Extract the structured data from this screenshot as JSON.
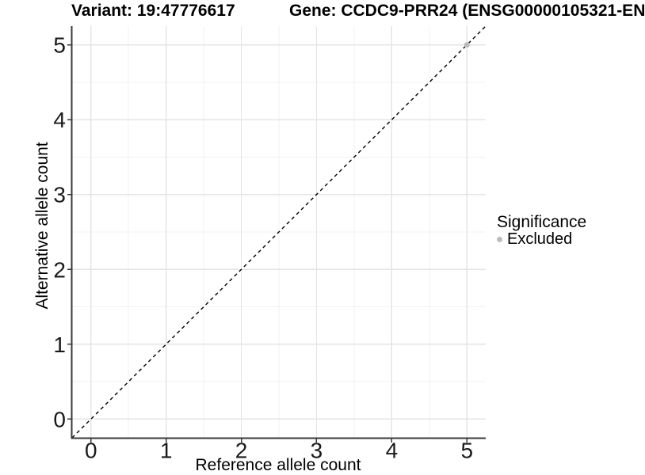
{
  "chart_data": {
    "type": "scatter",
    "title_variant": "Variant: 19:47776617",
    "title_gene": "Gene: CCDC9-PRR24 (ENSG00000105321-EN",
    "xlabel": "Reference allele count",
    "ylabel": "Alternative allele count",
    "xlim": [
      -0.25,
      5.25
    ],
    "ylim": [
      -0.25,
      5.25
    ],
    "x_ticks": [
      0,
      1,
      2,
      3,
      4,
      5
    ],
    "y_ticks": [
      0,
      1,
      2,
      3,
      4,
      5
    ],
    "x_minor_ticks": [
      0.5,
      1.5,
      2.5,
      3.5,
      4.5
    ],
    "y_minor_ticks": [
      0.5,
      1.5,
      2.5,
      3.5,
      4.5
    ],
    "grid": true,
    "legend_position": "right",
    "reference_line": {
      "slope": 1,
      "intercept": 0,
      "style": "dashed",
      "color": "#000000"
    },
    "series": [
      {
        "name": "Excluded",
        "color": "#bcbcbc",
        "points": [
          [
            5,
            5
          ]
        ]
      }
    ],
    "legend": {
      "title": "Significance",
      "entries": [
        {
          "label": "Excluded",
          "color": "#bcbcbc"
        }
      ]
    }
  },
  "colors": {
    "background": "#ffffff",
    "grid_major": "#e4e4e4",
    "grid_minor": "#f1f1f1",
    "axis_line": "#3a3a3a",
    "tick_text": "#1a1a1a",
    "title_text": "#000000"
  }
}
